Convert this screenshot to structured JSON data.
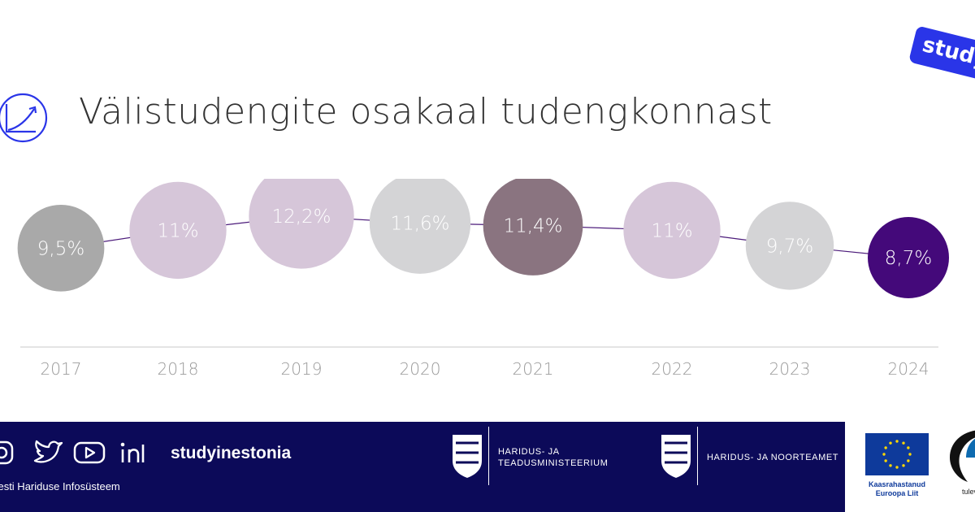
{
  "brand_badge": "study",
  "title": "Välistudengite osakaal tudengkonnast",
  "chart_data": {
    "type": "scatter",
    "title": "Välistudengite osakaal tudengkonnast",
    "xlabel": "",
    "ylabel": "",
    "categories": [
      "2017",
      "2018",
      "2019",
      "2020",
      "2021",
      "2022",
      "2023",
      "2024"
    ],
    "values": [
      9.5,
      11,
      12.2,
      11.6,
      11.4,
      11,
      9.7,
      8.7
    ],
    "value_labels": [
      "9,5%",
      "11%",
      "12,2%",
      "11,6%",
      "11,4%",
      "11%",
      "9,7%",
      "8,7%"
    ],
    "point_colors": [
      "#a9a9a9",
      "#d6c6d9",
      "#d6c6d9",
      "#d4d4d6",
      "#8a7480",
      "#d6c6d9",
      "#d4d4d6",
      "#44097a"
    ],
    "line_color": "#4b1a7a",
    "grid": false,
    "unit": "%"
  },
  "footer": {
    "social_handle": "studyinestonia",
    "source": "Allikas: Eesti Hariduse Infosüsteem",
    "ministry_name": [
      "Haridus- ja",
      "Teadusministeerium"
    ],
    "agency_name": "Haridus- ja Noorteamet",
    "eu_caption": [
      "Kaasrahastanud",
      "Euroopa Liit"
    ],
    "tulevik_caption": "tulevik"
  },
  "colors": {
    "footer_bg": "#0c0a59",
    "accent_blue": "#2a35e8",
    "eu_blue": "#0e3a9b"
  }
}
